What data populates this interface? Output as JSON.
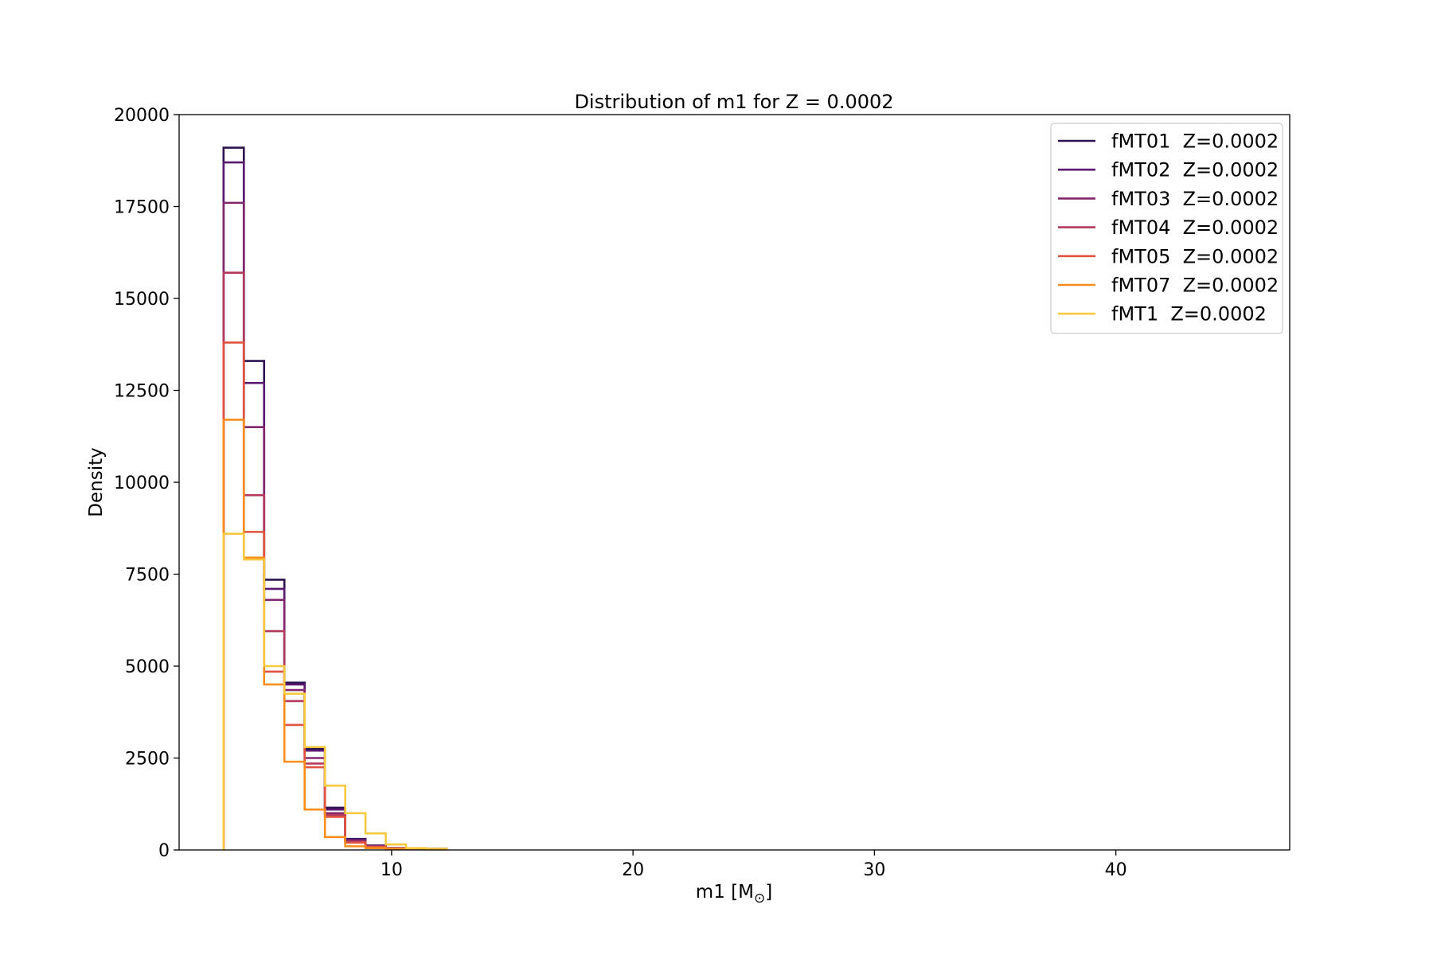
{
  "chart_data": {
    "type": "histogram",
    "title": "Distribution of m1 for Z = 0.0002",
    "xlabel": "m1 [M",
    "xlabel_sub": "⊙",
    "xlabel_close": "]",
    "ylabel": "Density",
    "xlim": [
      1.2,
      47.2
    ],
    "ylim": [
      0,
      20000
    ],
    "xticks": [
      10,
      20,
      30,
      40
    ],
    "yticks": [
      0,
      2500,
      5000,
      7500,
      10000,
      12500,
      15000,
      17500,
      20000
    ],
    "grid": false,
    "legend_position": "top-right",
    "bin_edges": [
      3.04,
      3.88,
      4.72,
      5.56,
      6.4,
      7.24,
      8.08,
      8.92,
      9.76,
      10.6,
      11.44,
      12.28
    ],
    "series": [
      {
        "name": "fMT01  Z=0.0002",
        "color": "#2c1250",
        "values": [
          19100,
          13300,
          7350,
          4550,
          2750,
          1150,
          300,
          120,
          50,
          40,
          30
        ]
      },
      {
        "name": "fMT02  Z=0.0002",
        "color": "#5a1a72",
        "values": [
          18700,
          12700,
          7100,
          4500,
          2700,
          1100,
          280,
          110,
          50,
          40,
          30
        ]
      },
      {
        "name": "fMT03  Z=0.0002",
        "color": "#82276e",
        "values": [
          17600,
          11500,
          6800,
          4350,
          2500,
          1000,
          250,
          100,
          45,
          35,
          25
        ]
      },
      {
        "name": "fMT04  Z=0.0002",
        "color": "#b33a5c",
        "values": [
          15700,
          9650,
          5950,
          4050,
          2350,
          950,
          220,
          90,
          45,
          30,
          20
        ]
      },
      {
        "name": "fMT05  Z=0.0002",
        "color": "#e0533f",
        "values": [
          13800,
          8650,
          4850,
          3400,
          2250,
          900,
          200,
          80,
          40,
          30,
          20
        ]
      },
      {
        "name": "fMT07  Z=0.0002",
        "color": "#f98e1c",
        "values": [
          11700,
          7950,
          4500,
          2400,
          1100,
          350,
          100,
          50,
          30,
          20,
          15
        ]
      },
      {
        "name": "fMT1  Z=0.0002",
        "color": "#f8c93e",
        "values": [
          8600,
          7900,
          5000,
          4250,
          2800,
          1750,
          1000,
          450,
          150,
          50,
          30
        ]
      }
    ]
  }
}
